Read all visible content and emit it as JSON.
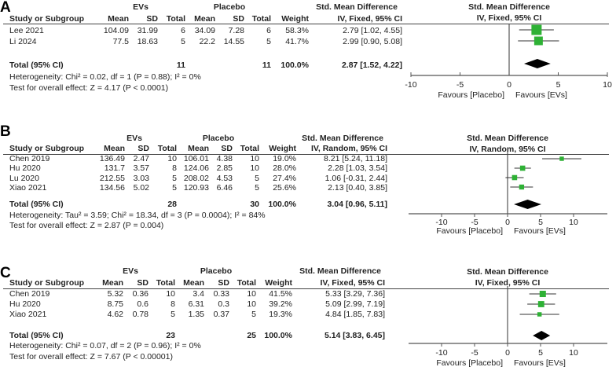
{
  "chart_data": [
    {
      "type": "forest",
      "panel_label": "A",
      "group_headers": {
        "treatment": "EVs",
        "control": "Placebo",
        "effect": "Std. Mean Difference"
      },
      "columns": [
        "Study or Subgroup",
        "Mean",
        "SD",
        "Total",
        "Mean",
        "SD",
        "Total",
        "Weight",
        "IV, Fixed, 95% CI"
      ],
      "studies": [
        {
          "name": "Lee 2021",
          "ev_mean": "104.09",
          "ev_sd": "31.99",
          "ev_total": "6",
          "pl_mean": "34.09",
          "pl_sd": "7.28",
          "pl_total": "6",
          "weight": "58.3%",
          "ci_text": "2.79 [1.02, 4.55]",
          "smd": 2.79,
          "lo": 1.02,
          "hi": 4.55,
          "w": 58.3
        },
        {
          "name": "Li 2024",
          "ev_mean": "77.5",
          "ev_sd": "18.63",
          "ev_total": "5",
          "pl_mean": "22.2",
          "pl_sd": "14.55",
          "pl_total": "5",
          "weight": "41.7%",
          "ci_text": "2.99 [0.90, 5.08]",
          "smd": 2.99,
          "lo": 0.9,
          "hi": 5.08,
          "w": 41.7
        }
      ],
      "total": {
        "name": "Total (95% CI)",
        "ev_total": "11",
        "pl_total": "11",
        "weight": "100.0%",
        "ci_text": "2.87 [1.52, 4.22]",
        "smd": 2.87,
        "lo": 1.52,
        "hi": 4.22
      },
      "heterogeneity": "Heterogeneity: Chi² = 0.02, df = 1 (P = 0.88); I² = 0%",
      "overall_effect": "Test for overall effect: Z = 4.17 (P < 0.0001)",
      "plot_title": [
        "Std. Mean Difference",
        "IV, Fixed, 95% CI"
      ],
      "xlim": [
        -10,
        10
      ],
      "xticks": [
        "-10",
        "-5",
        "0",
        "5",
        "10"
      ],
      "favours_left": "Favours [Placebo]",
      "favours_right": "Favours [EVs]"
    },
    {
      "type": "forest",
      "panel_label": "B",
      "group_headers": {
        "treatment": "EVs",
        "control": "Placebo",
        "effect": "Std. Mean Difference"
      },
      "columns": [
        "Study or Subgroup",
        "Mean",
        "SD",
        "Total",
        "Mean",
        "SD",
        "Total",
        "Weight",
        "IV, Random, 95% CI"
      ],
      "studies": [
        {
          "name": "Chen 2019",
          "ev_mean": "136.49",
          "ev_sd": "2.47",
          "ev_total": "10",
          "pl_mean": "106.01",
          "pl_sd": "4.38",
          "pl_total": "10",
          "weight": "19.0%",
          "ci_text": "8.21 [5.24, 11.18]",
          "smd": 8.21,
          "lo": 5.24,
          "hi": 11.18,
          "w": 19.0
        },
        {
          "name": "Hu 2020",
          "ev_mean": "131.7",
          "ev_sd": "3.57",
          "ev_total": "8",
          "pl_mean": "124.06",
          "pl_sd": "2.85",
          "pl_total": "10",
          "weight": "28.0%",
          "ci_text": "2.28 [1.03, 3.54]",
          "smd": 2.28,
          "lo": 1.03,
          "hi": 3.54,
          "w": 28.0
        },
        {
          "name": "Lu 2020",
          "ev_mean": "212.55",
          "ev_sd": "3.03",
          "ev_total": "5",
          "pl_mean": "208.02",
          "pl_sd": "4.53",
          "pl_total": "5",
          "weight": "27.4%",
          "ci_text": "1.06 [-0.31, 2.44]",
          "smd": 1.06,
          "lo": -0.31,
          "hi": 2.44,
          "w": 27.4
        },
        {
          "name": "Xiao 2021",
          "ev_mean": "134.56",
          "ev_sd": "5.02",
          "ev_total": "5",
          "pl_mean": "120.93",
          "pl_sd": "6.46",
          "pl_total": "5",
          "weight": "25.6%",
          "ci_text": "2.13 [0.40, 3.85]",
          "smd": 2.13,
          "lo": 0.4,
          "hi": 3.85,
          "w": 25.6
        }
      ],
      "total": {
        "name": "Total (95% CI)",
        "ev_total": "28",
        "pl_total": "30",
        "weight": "100.0%",
        "ci_text": "3.04 [0.96, 5.11]",
        "smd": 3.04,
        "lo": 0.96,
        "hi": 5.11
      },
      "heterogeneity": "Heterogeneity: Tau² = 3.59; Chi² = 18.34, df = 3 (P = 0.0004); I² = 84%",
      "overall_effect": "Test for overall effect: Z = 2.87 (P = 0.004)",
      "plot_title": [
        "Std. Mean Difference",
        "IV, Random, 95% CI"
      ],
      "xlim": [
        -15,
        15
      ],
      "xticks": [
        "-10",
        "-5",
        "0",
        "5",
        "10"
      ],
      "favours_left": "Favours [Placebo]",
      "favours_right": "Favours [EVs]"
    },
    {
      "type": "forest",
      "panel_label": "C",
      "group_headers": {
        "treatment": "EVs",
        "control": "Placebo",
        "effect": "Std. Mean Difference"
      },
      "columns": [
        "Study or Subgroup",
        "Mean",
        "SD",
        "Total",
        "Mean",
        "SD",
        "Total",
        "Weight",
        "IV, Fixed, 95% CI"
      ],
      "studies": [
        {
          "name": "Chen 2019",
          "ev_mean": "5.32",
          "ev_sd": "0.36",
          "ev_total": "10",
          "pl_mean": "3.4",
          "pl_sd": "0.33",
          "pl_total": "10",
          "weight": "41.5%",
          "ci_text": "5.33 [3.29, 7.36]",
          "smd": 5.33,
          "lo": 3.29,
          "hi": 7.36,
          "w": 41.5
        },
        {
          "name": "Hu 2020",
          "ev_mean": "8.75",
          "ev_sd": "0.6",
          "ev_total": "8",
          "pl_mean": "6.31",
          "pl_sd": "0.3",
          "pl_total": "10",
          "weight": "39.2%",
          "ci_text": "5.09 [2.99, 7.19]",
          "smd": 5.09,
          "lo": 2.99,
          "hi": 7.19,
          "w": 39.2
        },
        {
          "name": "Xiao 2021",
          "ev_mean": "4.62",
          "ev_sd": "0.78",
          "ev_total": "5",
          "pl_mean": "1.35",
          "pl_sd": "0.37",
          "pl_total": "5",
          "weight": "19.3%",
          "ci_text": "4.84 [1.85, 7.83]",
          "smd": 4.84,
          "lo": 1.85,
          "hi": 7.83,
          "w": 19.3
        }
      ],
      "total": {
        "name": "Total (95% CI)",
        "ev_total": "23",
        "pl_total": "25",
        "weight": "100.0%",
        "ci_text": "5.14 [3.83, 6.45]",
        "smd": 5.14,
        "lo": 3.83,
        "hi": 6.45
      },
      "heterogeneity": "Heterogeneity: Chi² = 0.07, df = 2 (P = 0.96); I² = 0%",
      "overall_effect": "Test for overall effect: Z = 7.67 (P < 0.00001)",
      "plot_title": [
        "Std. Mean Difference",
        "IV, Fixed, 95% CI"
      ],
      "xlim": [
        -15,
        15
      ],
      "xticks": [
        "-10",
        "-5",
        "0",
        "5",
        "10"
      ],
      "favours_left": "Favours [Placebo]",
      "favours_right": "Favours [EVs]"
    }
  ],
  "colors": {
    "study_marker": "#2eb135",
    "ci_line": "#333333",
    "diamond": "#000000",
    "axis": "#555555"
  }
}
